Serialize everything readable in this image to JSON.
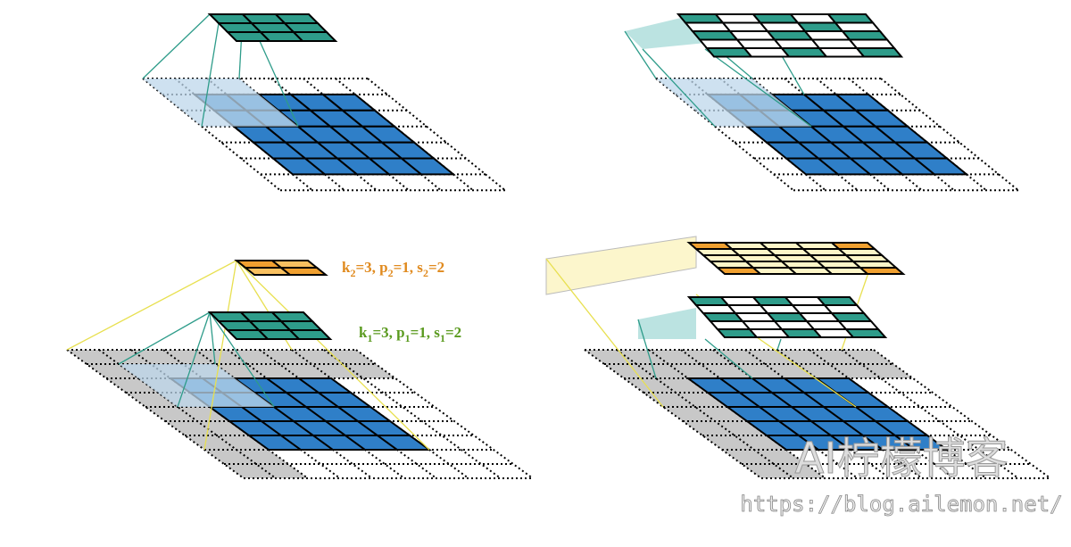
{
  "annotations": {
    "k2": [
      "k",
      "2",
      "=3, p",
      "2",
      "=1, s",
      "2",
      "=2"
    ],
    "k1": [
      "k",
      "1",
      "=3, p",
      "1",
      "=1, s",
      "1",
      "=2"
    ]
  },
  "watermark": {
    "title": "AI柠檬博客",
    "url": "https://blog.ailemon.net/"
  }
}
